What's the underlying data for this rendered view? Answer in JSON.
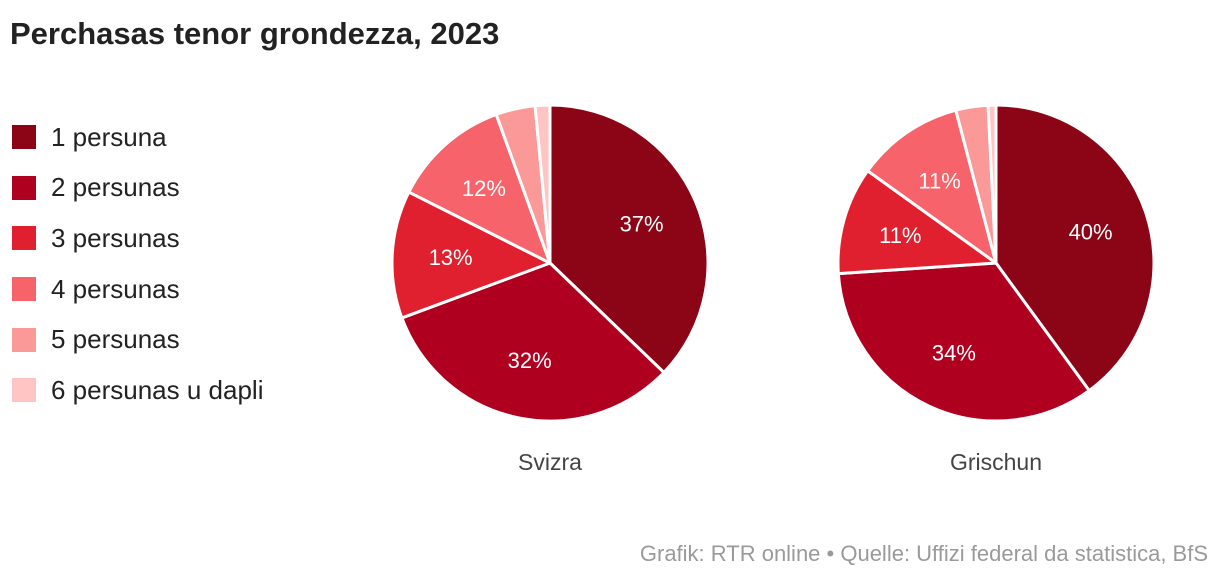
{
  "title": "Perchasas tenor grondezza, 2023",
  "source": "Grafik: RTR online • Quelle: Uffizi federal da statistica, BfS",
  "legend": {
    "placement": "left",
    "items": [
      {
        "label": "1 persuna",
        "color": "#8b0516"
      },
      {
        "label": "2 persunas",
        "color": "#b00020"
      },
      {
        "label": "3 persunas",
        "color": "#e0202e"
      },
      {
        "label": "4 persunas",
        "color": "#f7636a"
      },
      {
        "label": "5 persunas",
        "color": "#fb9898"
      },
      {
        "label": "6 persunas u dapli",
        "color": "#ffc4c4"
      }
    ]
  },
  "chart_data": [
    {
      "type": "pie",
      "title": "Svizra",
      "labels": [
        "1 persuna",
        "2 persunas",
        "3 persunas",
        "4 persunas",
        "5 persunas",
        "6 persunas u dapli"
      ],
      "values": [
        37,
        32,
        13,
        12,
        4,
        1.5
      ],
      "data_labels": [
        "37%",
        "32%",
        "13%",
        "12%",
        "",
        ""
      ]
    },
    {
      "type": "pie",
      "title": "Grischun",
      "labels": [
        "1 persuna",
        "2 persunas",
        "3 persunas",
        "4 persunas",
        "5 persunas",
        "6 persunas u dapli"
      ],
      "values": [
        40,
        34,
        11,
        11,
        3.3,
        0.8
      ],
      "data_labels": [
        "40%",
        "34%",
        "11%",
        "11%",
        "",
        ""
      ]
    }
  ]
}
